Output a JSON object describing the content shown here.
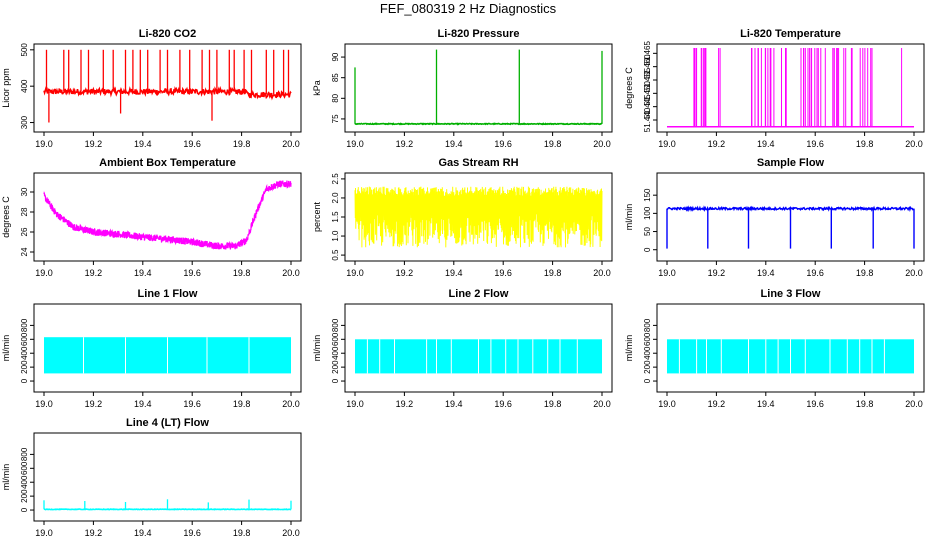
{
  "figure": {
    "title": "FEF_080319  2 Hz Diagnostics"
  },
  "chart_data": [
    {
      "type": "line",
      "title": "Li-820 CO2",
      "ylabel": "Licor ppm",
      "color": "#ff0000",
      "xlim": [
        19.0,
        20.0
      ],
      "ylim": [
        285,
        505
      ],
      "xticks": [
        19.0,
        19.2,
        19.4,
        19.6,
        19.8,
        20.0
      ],
      "xtick_labels": [
        "19.0",
        "19.2",
        "19.4",
        "19.6",
        "19.8",
        "20.0"
      ],
      "yticks": [
        300,
        400,
        500
      ],
      "ytick_labels": [
        "300",
        "400",
        "500"
      ],
      "pattern": "co2",
      "series": [
        {
          "name": "CO2",
          "baseline": 385,
          "noise": 8
        }
      ],
      "spikes": [
        [
          19.01,
          500
        ],
        [
          19.02,
          300
        ],
        [
          19.08,
          500
        ],
        [
          19.1,
          500
        ],
        [
          19.15,
          500
        ],
        [
          19.18,
          500
        ],
        [
          19.24,
          500
        ],
        [
          19.28,
          500
        ],
        [
          19.31,
          325
        ],
        [
          19.33,
          500
        ],
        [
          19.36,
          500
        ],
        [
          19.39,
          500
        ],
        [
          19.42,
          500
        ],
        [
          19.47,
          500
        ],
        [
          19.5,
          500
        ],
        [
          19.55,
          500
        ],
        [
          19.59,
          500
        ],
        [
          19.64,
          500
        ],
        [
          19.67,
          500
        ],
        [
          19.68,
          305
        ],
        [
          19.7,
          500
        ],
        [
          19.75,
          500
        ],
        [
          19.77,
          500
        ],
        [
          19.81,
          500
        ],
        [
          19.84,
          500
        ],
        [
          19.9,
          500
        ],
        [
          19.93,
          500
        ],
        [
          19.97,
          500
        ],
        [
          19.99,
          500
        ]
      ]
    },
    {
      "type": "line",
      "title": "Li-820 Pressure",
      "ylabel": "kPa",
      "color": "#00b000",
      "xlim": [
        19.0,
        20.0
      ],
      "ylim": [
        72.8,
        92.2
      ],
      "xticks": [
        19.0,
        19.2,
        19.4,
        19.6,
        19.8,
        20.0
      ],
      "xtick_labels": [
        "19.0",
        "19.2",
        "19.4",
        "19.6",
        "19.8",
        "20.0"
      ],
      "yticks": [
        75,
        80,
        85,
        90
      ],
      "ytick_labels": [
        "75",
        "80",
        "85",
        "90"
      ],
      "pattern": "pressure",
      "series": [
        {
          "name": "Pressure",
          "baseline": 73.8,
          "noise": 0.1
        }
      ],
      "spikes": [
        [
          19.0,
          87.5
        ],
        [
          19.33,
          91.8
        ],
        [
          19.665,
          91.8
        ],
        [
          20.0,
          91.5
        ]
      ]
    },
    {
      "type": "line",
      "title": "Li-820 Temperature",
      "ylabel": "degrees C",
      "color": "#ff00ff",
      "xlim": [
        19.0,
        20.0
      ],
      "ylim": [
        51.437,
        51.467
      ],
      "xticks": [
        19.0,
        19.2,
        19.4,
        19.6,
        19.8,
        20.0
      ],
      "xtick_labels": [
        "19.0",
        "19.2",
        "19.4",
        "19.6",
        "19.8",
        "20.0"
      ],
      "yticks": [
        51.44,
        51.445,
        51.45,
        51.455,
        51.46,
        51.465
      ],
      "ytick_labels": [
        "51.440",
        "51.445",
        "51.450",
        "51.455",
        "51.460",
        "51.465"
      ],
      "pattern": "licortemp",
      "series": [
        {
          "name": "Temperature",
          "low": 51.4375,
          "high": 51.467
        }
      ]
    },
    {
      "type": "line",
      "title": "Ambient Box Temperature",
      "ylabel": "degrees C",
      "color": "#ff00ff",
      "xlim": [
        19.0,
        20.0
      ],
      "ylim": [
        23.5,
        31.5
      ],
      "xticks": [
        19.0,
        19.2,
        19.4,
        19.6,
        19.8,
        20.0
      ],
      "xtick_labels": [
        "19.0",
        "19.2",
        "19.4",
        "19.6",
        "19.8",
        "20.0"
      ],
      "yticks": [
        24,
        26,
        28,
        30
      ],
      "ytick_labels": [
        "24",
        "26",
        "28",
        "30"
      ],
      "pattern": "ambient",
      "series": [
        {
          "name": "Ambient",
          "points": [
            [
              19.0,
              29.6
            ],
            [
              19.05,
              27.8
            ],
            [
              19.12,
              26.5
            ],
            [
              19.2,
              26.0
            ],
            [
              19.3,
              25.8
            ],
            [
              19.4,
              25.5
            ],
            [
              19.5,
              25.3
            ],
            [
              19.6,
              25.0
            ],
            [
              19.7,
              24.6
            ],
            [
              19.78,
              24.6
            ],
            [
              19.82,
              25.2
            ],
            [
              19.86,
              28.0
            ],
            [
              19.9,
              30.3
            ],
            [
              19.95,
              30.8
            ],
            [
              20.0,
              30.8
            ]
          ]
        }
      ]
    },
    {
      "type": "line",
      "title": "Gas Stream RH",
      "ylabel": "percent",
      "color": "#ffff00",
      "xlim": [
        19.0,
        20.0
      ],
      "ylim": [
        0.45,
        2.55
      ],
      "xticks": [
        19.0,
        19.2,
        19.4,
        19.6,
        19.8,
        20.0
      ],
      "xtick_labels": [
        "19.0",
        "19.2",
        "19.4",
        "19.6",
        "19.8",
        "20.0"
      ],
      "yticks": [
        0.5,
        1.0,
        1.5,
        2.0,
        2.5
      ],
      "ytick_labels": [
        "0.5",
        "1.0",
        "1.5",
        "2.0",
        "2.5"
      ],
      "pattern": "rh",
      "series": [
        {
          "name": "RH",
          "low": 0.7,
          "high": 2.3
        }
      ]
    },
    {
      "type": "line",
      "title": "Sample Flow",
      "ylabel": "ml/min",
      "color": "#0000ff",
      "xlim": [
        19.0,
        20.0
      ],
      "ylim": [
        -20,
        200
      ],
      "xticks": [
        19.0,
        19.2,
        19.4,
        19.6,
        19.8,
        20.0
      ],
      "xtick_labels": [
        "19.0",
        "19.2",
        "19.4",
        "19.6",
        "19.8",
        "20.0"
      ],
      "yticks": [
        0,
        50,
        100,
        150
      ],
      "ytick_labels": [
        "0",
        "50",
        "100",
        "150"
      ],
      "pattern": "flow",
      "series": [
        {
          "name": "Sample Flow",
          "baseline": 113,
          "noise": 3
        }
      ],
      "dips": [
        19.0,
        19.165,
        19.33,
        19.5,
        19.665,
        19.835,
        20.0
      ],
      "dip_low": 3
    },
    {
      "type": "line",
      "title": "Line 1 Flow",
      "ylabel": "ml/min",
      "color": "#00ffff",
      "xlim": [
        19.0,
        20.0
      ],
      "ylim": [
        -100,
        1050
      ],
      "xticks": [
        19.0,
        19.2,
        19.4,
        19.6,
        19.8,
        20.0
      ],
      "xtick_labels": [
        "19.0",
        "19.2",
        "19.4",
        "19.6",
        "19.8",
        "20.0"
      ],
      "yticks": [
        0,
        200,
        400,
        600,
        800
      ],
      "ytick_labels": [
        "0",
        "200",
        "400",
        "600",
        "800"
      ],
      "pattern": "band",
      "series": [
        {
          "name": "Line 1",
          "low": 110,
          "high": 630
        }
      ],
      "gaps": [
        19.16,
        19.33,
        19.5,
        19.66,
        19.83
      ]
    },
    {
      "type": "line",
      "title": "Line 2 Flow",
      "ylabel": "ml/min",
      "color": "#00ffff",
      "xlim": [
        19.0,
        20.0
      ],
      "ylim": [
        -100,
        1050
      ],
      "xticks": [
        19.0,
        19.2,
        19.4,
        19.6,
        19.8,
        20.0
      ],
      "xtick_labels": [
        "19.0",
        "19.2",
        "19.4",
        "19.6",
        "19.8",
        "20.0"
      ],
      "yticks": [
        0,
        200,
        400,
        600,
        800
      ],
      "ytick_labels": [
        "0",
        "200",
        "400",
        "600",
        "800"
      ],
      "pattern": "band",
      "series": [
        {
          "name": "Line 2",
          "low": 110,
          "high": 600
        }
      ],
      "gaps": [
        19.05,
        19.1,
        19.16,
        19.29,
        19.33,
        19.39,
        19.5,
        19.55,
        19.61,
        19.66,
        19.72,
        19.78,
        19.83,
        19.9
      ]
    },
    {
      "type": "line",
      "title": "Line 3 Flow",
      "ylabel": "ml/min",
      "color": "#00ffff",
      "xlim": [
        19.0,
        20.0
      ],
      "ylim": [
        -100,
        1050
      ],
      "xticks": [
        19.0,
        19.2,
        19.4,
        19.6,
        19.8,
        20.0
      ],
      "xtick_labels": [
        "19.0",
        "19.2",
        "19.4",
        "19.6",
        "19.8",
        "20.0"
      ],
      "yticks": [
        0,
        200,
        400,
        600,
        800
      ],
      "ytick_labels": [
        "0",
        "200",
        "400",
        "600",
        "800"
      ],
      "pattern": "band",
      "series": [
        {
          "name": "Line 3",
          "low": 110,
          "high": 600
        }
      ],
      "gaps": [
        19.05,
        19.12,
        19.16,
        19.22,
        19.33,
        19.4,
        19.45,
        19.5,
        19.56,
        19.66,
        19.73,
        19.78,
        19.83,
        19.88
      ]
    },
    {
      "type": "line",
      "title": "Line 4 (LT) Flow",
      "ylabel": "ml/min",
      "color": "#00ffff",
      "xlim": [
        19.0,
        20.0
      ],
      "ylim": [
        -100,
        1050
      ],
      "xticks": [
        19.0,
        19.2,
        19.4,
        19.6,
        19.8,
        20.0
      ],
      "xtick_labels": [
        "19.0",
        "19.2",
        "19.4",
        "19.6",
        "19.8",
        "20.0"
      ],
      "yticks": [
        0,
        200,
        400,
        600,
        800
      ],
      "ytick_labels": [
        "0",
        "200",
        "400",
        "600",
        "800"
      ],
      "pattern": "lt",
      "series": [
        {
          "name": "Line 4",
          "baseline": 10,
          "noise": 4
        }
      ],
      "spikes": [
        [
          19.0,
          140
        ],
        [
          19.165,
          130
        ],
        [
          19.33,
          115
        ],
        [
          19.5,
          155
        ],
        [
          19.665,
          110
        ],
        [
          19.83,
          150
        ],
        [
          20.0,
          135
        ]
      ]
    }
  ]
}
